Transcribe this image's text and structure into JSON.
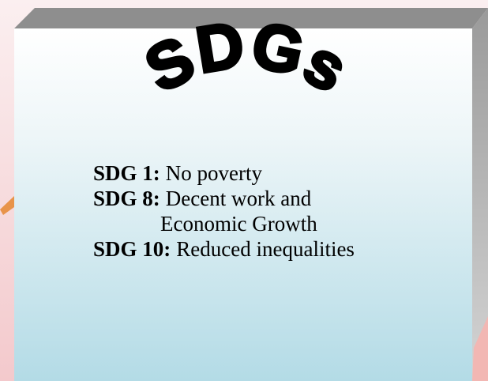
{
  "title": "SDGs",
  "items": [
    {
      "label": "SDG 1:",
      "text": "No poverty"
    },
    {
      "label": "SDG 8:",
      "text": "Decent work and",
      "continuation": "Economic Growth"
    },
    {
      "label": "SDG 10:",
      "text": "Reduced inequalities"
    }
  ]
}
